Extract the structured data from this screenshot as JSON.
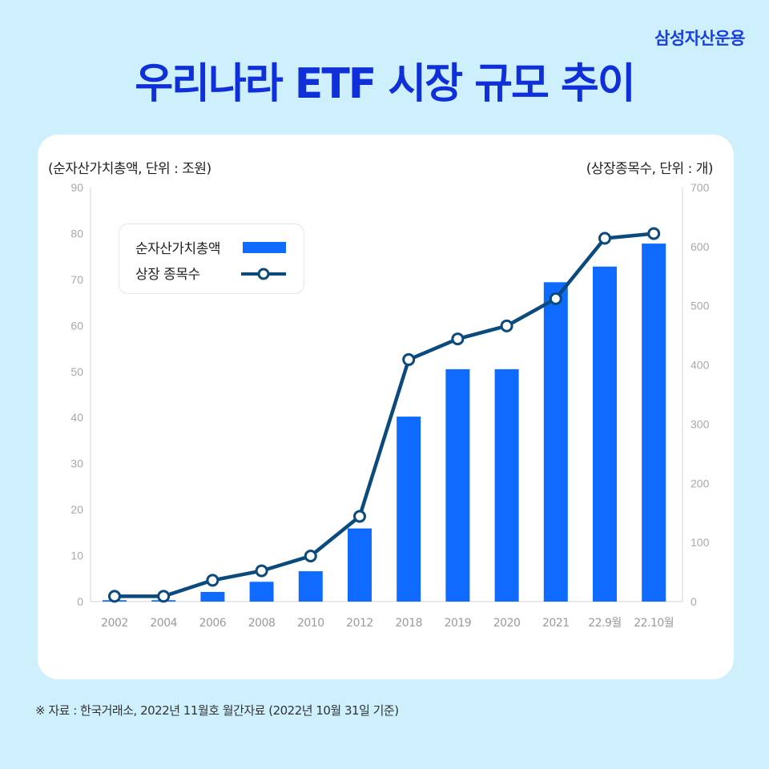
{
  "brand": "삼성자산운용",
  "title": "우리나라 ETF 시장 규모 추이",
  "left_unit": "(순자산가치총액, 단위 : 조원)",
  "right_unit": "(상장종목수, 단위 : 개)",
  "legend": {
    "bar_label": "순자산가치총액",
    "line_label": "상장 종목수"
  },
  "source": "※ 자료 : 한국거래소, 2022년 11월호 월간자료 (2022년 10월 31일 기준)",
  "colors": {
    "bar": "#0f6bff",
    "line": "#0b4a7c",
    "title": "#0f2fd8",
    "background": "#cdf0fc"
  },
  "chart_data": {
    "type": "bar",
    "categories": [
      "2002",
      "2004",
      "2006",
      "2008",
      "2010",
      "2012",
      "2018",
      "2019",
      "2020",
      "2021",
      "22.9월",
      "22.10월"
    ],
    "series": [
      {
        "name": "순자산가치총액",
        "type": "bar",
        "axis": "left",
        "values": [
          0.3,
          0.3,
          2.1,
          4.3,
          6.6,
          15.9,
          40.2,
          50.5,
          50.5,
          69.4,
          72.8,
          77.8
        ]
      },
      {
        "name": "상장 종목수",
        "type": "line",
        "axis": "right",
        "values": [
          9,
          9,
          36,
          52,
          77,
          144,
          409,
          444,
          466,
          512,
          614,
          622
        ]
      }
    ],
    "y_left": {
      "min": 0,
      "max": 90,
      "ticks": [
        0,
        10,
        20,
        30,
        40,
        50,
        60,
        70,
        80,
        90
      ]
    },
    "y_right": {
      "min": 0,
      "max": 700,
      "ticks": [
        0,
        100,
        200,
        300,
        400,
        500,
        600,
        700
      ]
    },
    "grid": false,
    "legend_position": "top-left"
  }
}
